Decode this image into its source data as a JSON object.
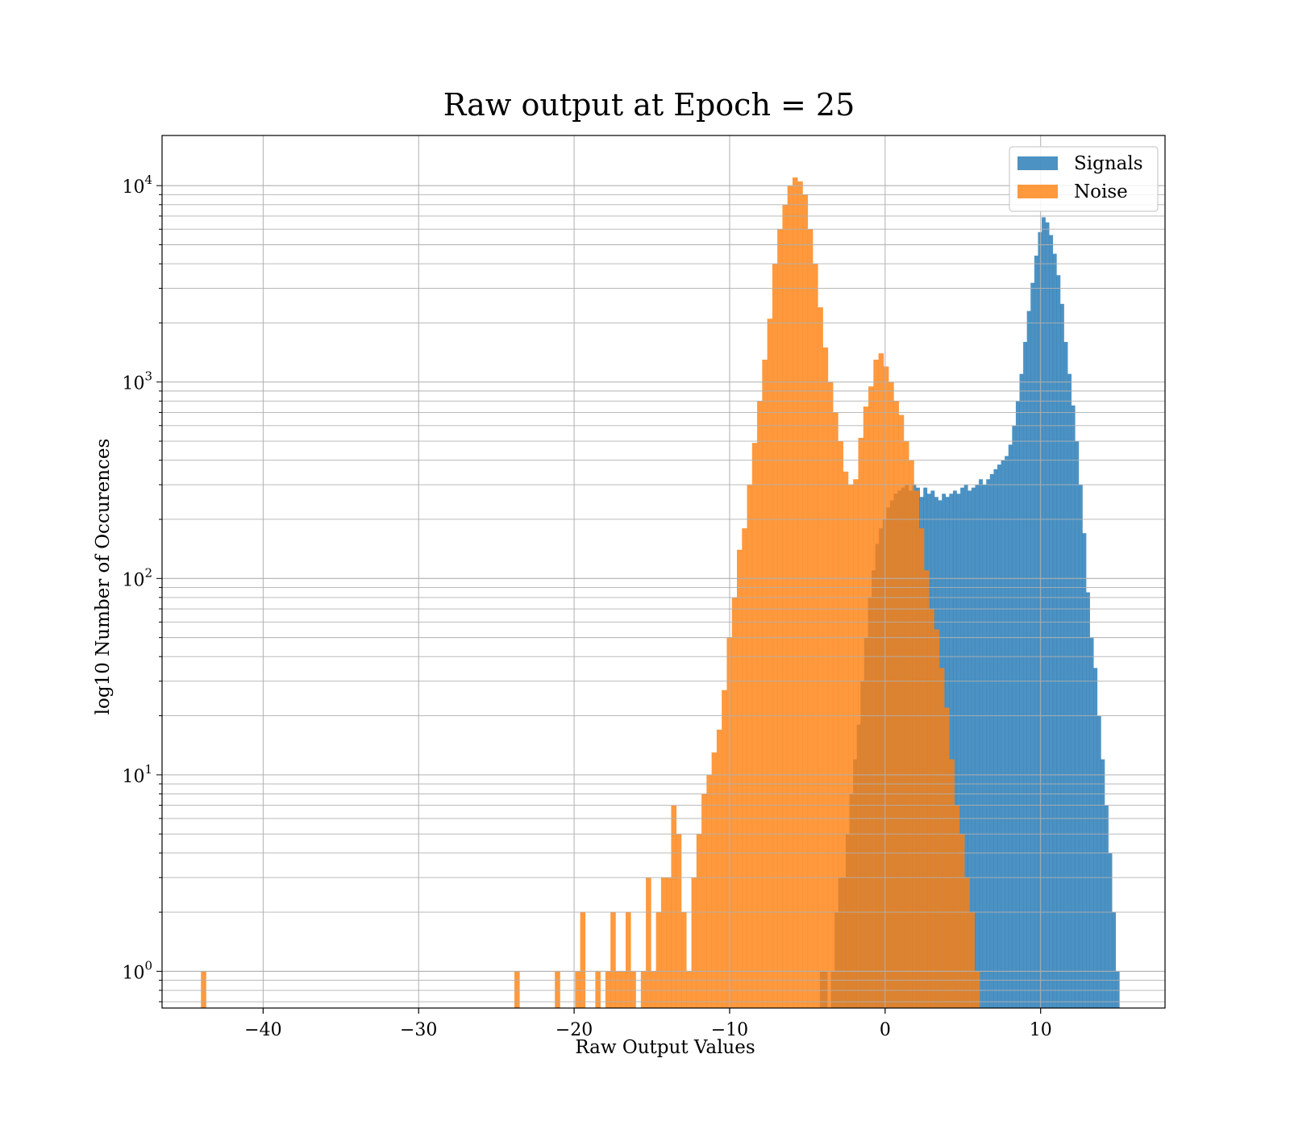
{
  "chart_data": {
    "type": "histogram",
    "title": "Raw output at Epoch = 25",
    "xlabel": "Raw Output Values",
    "ylabel": "log10 Number of Occurences",
    "xlim": [
      -46.5,
      18
    ],
    "ylim": [
      0.65,
      18000
    ],
    "yscale": "log",
    "grid": true,
    "legend_position": "upper-right",
    "x_ticks": [
      -40,
      -30,
      -20,
      -10,
      0,
      10
    ],
    "x_tick_labels": [
      "−40",
      "−30",
      "−20",
      "−10",
      "0",
      "10"
    ],
    "y_ticks": [
      {
        "value": 1,
        "base": "10",
        "exp": "0"
      },
      {
        "value": 10,
        "base": "10",
        "exp": "1"
      },
      {
        "value": 100,
        "base": "10",
        "exp": "2"
      },
      {
        "value": 1000,
        "base": "10",
        "exp": "3"
      },
      {
        "value": 10000,
        "base": "10",
        "exp": "4"
      }
    ],
    "series": [
      {
        "name": "Signals",
        "color": "#1f77b4",
        "bin_edges": [
          -4.2,
          15.3
        ],
        "counts": [
          1,
          1,
          0,
          1,
          2,
          3,
          3,
          5,
          8,
          12,
          18,
          30,
          50,
          80,
          110,
          150,
          180,
          200,
          230,
          250,
          270,
          280,
          290,
          300,
          280,
          300,
          290,
          260,
          290,
          270,
          280,
          260,
          250,
          270,
          260,
          270,
          280,
          270,
          290,
          300,
          280,
          290,
          300,
          320,
          300,
          320,
          340,
          360,
          380,
          400,
          420,
          480,
          600,
          800,
          1100,
          1600,
          2300,
          3200,
          4400,
          5800,
          6900,
          6500,
          5600,
          4500,
          3500,
          2500,
          1600,
          1100,
          760,
          500,
          300,
          170,
          85,
          50,
          35,
          20,
          12,
          7,
          4,
          2,
          1,
          0
        ]
      },
      {
        "name": "Noise",
        "color": "#ff7f0e",
        "bin_edges": [
          -44.0,
          6.4
        ],
        "counts": [
          1,
          0,
          0,
          0,
          0,
          0,
          0,
          0,
          0,
          0,
          0,
          0,
          0,
          0,
          0,
          0,
          0,
          0,
          0,
          0,
          0,
          0,
          0,
          0,
          0,
          0,
          0,
          0,
          0,
          0,
          0,
          0,
          0,
          0,
          0,
          0,
          0,
          0,
          0,
          0,
          0,
          0,
          0,
          0,
          0,
          0,
          0,
          0,
          0,
          0,
          0,
          0,
          0,
          0,
          0,
          0,
          0,
          0,
          0,
          0,
          0,
          0,
          1,
          0,
          0,
          0,
          0,
          0,
          0,
          0,
          1,
          0,
          0,
          0,
          1,
          2,
          0,
          0,
          1,
          0,
          1,
          2,
          1,
          1,
          2,
          1,
          0,
          1,
          3,
          1,
          2,
          3,
          3,
          7,
          5,
          2,
          1,
          3,
          5,
          8,
          10,
          13,
          17,
          27,
          50,
          80,
          140,
          180,
          300,
          490,
          800,
          1300,
          2100,
          4000,
          6000,
          8000,
          10000,
          11000,
          10500,
          9000,
          6000,
          4000,
          2400,
          1500,
          1000,
          700,
          500,
          350,
          300,
          320,
          520,
          750,
          950,
          1300,
          1400,
          1200,
          1000,
          800,
          680,
          500,
          400,
          280,
          180,
          110,
          70,
          55,
          35,
          22,
          12,
          7,
          5,
          3,
          2,
          1,
          0
        ]
      }
    ]
  }
}
